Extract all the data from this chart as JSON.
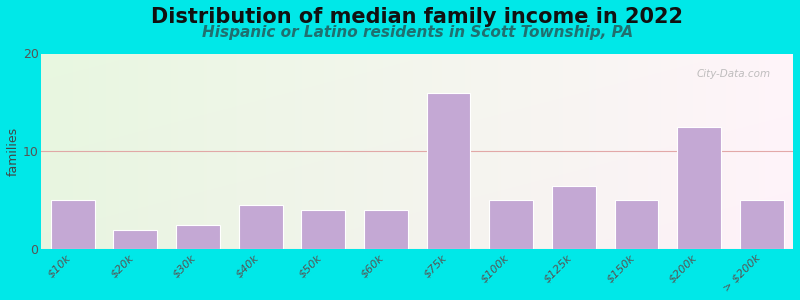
{
  "title": "Distribution of median family income in 2022",
  "subtitle": "Hispanic or Latino residents in Scott Township, PA",
  "ylabel": "families",
  "categories": [
    "$10k",
    "$20k",
    "$30k",
    "$40k",
    "$50k",
    "$60k",
    "$75k",
    "$100k",
    "$125k",
    "$150k",
    "$200k",
    "> $200k"
  ],
  "values": [
    5,
    2,
    2.5,
    4.5,
    4,
    4,
    16,
    5,
    6.5,
    5,
    12.5,
    5
  ],
  "bar_color": "#c4a8d4",
  "bar_edge_color": "#c4a8d4",
  "background_color": "#00e8e8",
  "plot_bg_color_topleft": "#e8f5e0",
  "plot_bg_color_topright": "#f5f5f0",
  "plot_bg_color_bottomleft": "#e8f5e0",
  "plot_bg_color_bottomright": "#f0f5f0",
  "grid_color": "#e0a0a0",
  "title_color": "#111111",
  "subtitle_color": "#207070",
  "ylabel_color": "#444444",
  "tick_color": "#555555",
  "ylim": [
    0,
    20
  ],
  "yticks": [
    0,
    10,
    20
  ],
  "title_fontsize": 15,
  "subtitle_fontsize": 11,
  "ylabel_fontsize": 9,
  "tick_fontsize": 8,
  "watermark": "City-Data.com"
}
